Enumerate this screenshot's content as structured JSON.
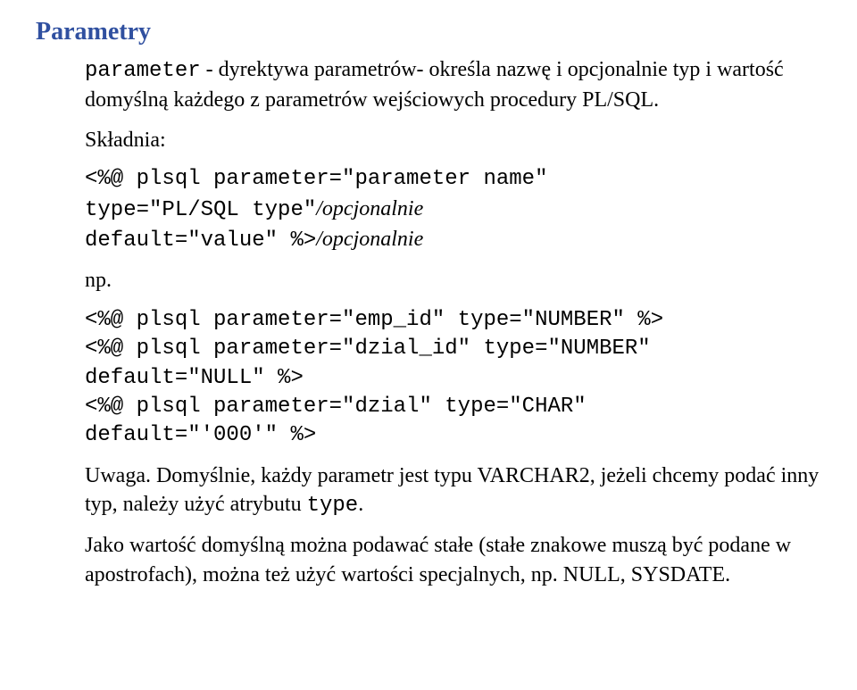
{
  "heading": "Parametry",
  "intro_code": "parameter",
  "intro_text": " - dyrektywa parametrów- określa nazwę i opcjonalnie typ i wartość domyślną każdego z parametrów wejściowych procedury PL/SQL.",
  "syntax_label": "Składnia:",
  "syntax_line1a": "<%@ plsql parameter=\"parameter name\"",
  "syntax_line2a": "type=\"PL/SQL type\"",
  "syntax_line2b": "/opcjonalnie",
  "syntax_line3a": "default=\"value\" %>",
  "syntax_line3b": "/opcjonalnie",
  "np_label": "np.",
  "example_code": "<%@ plsql parameter=\"emp_id\" type=\"NUMBER\" %>\n<%@ plsql parameter=\"dzial_id\" type=\"NUMBER\"\ndefault=\"NULL\" %>\n<%@ plsql parameter=\"dzial\" type=\"CHAR\"\ndefault=\"'000'\" %>",
  "note1a": "Uwaga. Domyślnie, każdy parametr jest typu VARCHAR2, jeżeli chcemy podać inny typ, należy użyć atrybutu ",
  "note1b": "type",
  "note1c": ".",
  "note2": "Jako wartość domyślną można podawać stałe (stałe znakowe muszą być podane w apostrofach), można też użyć wartości specjalnych, np. NULL, SYSDATE.",
  "colors": {
    "heading": "#3050a0",
    "text": "#000000",
    "background": "#ffffff"
  },
  "fonts": {
    "body_family": "Times New Roman",
    "mono_family": "Courier New",
    "body_size_pt": 18,
    "heading_size_pt": 21
  }
}
